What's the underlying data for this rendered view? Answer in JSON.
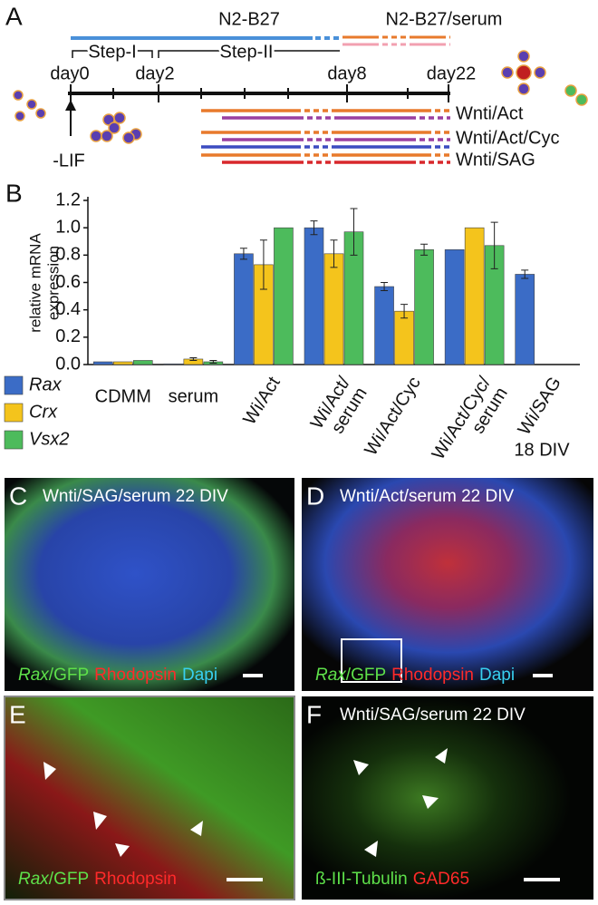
{
  "panel_a": {
    "label": "A",
    "media": [
      "N2-B27",
      "N2-B27/serum"
    ],
    "steps": [
      "Step-I",
      "Step-II"
    ],
    "days": [
      "day0",
      "day2",
      "day8",
      "day22"
    ],
    "treatment": "-LIF",
    "conditions": [
      "Wnti/Act",
      "Wnti/Act/Cyc",
      "Wnti/SAG"
    ]
  },
  "chart_data": {
    "type": "bar",
    "panel_label": "B",
    "ylabel": [
      "relative mRNA",
      "expression"
    ],
    "categories": [
      "CDMM",
      "serum",
      "Wi/Act",
      "Wi/Act/\nserum",
      "Wi/Act/Cyc",
      "Wi/Act/Cyc/\nserum",
      "Wi/SAG"
    ],
    "series": [
      {
        "name": "Rax",
        "color": "#3b6cc6",
        "values": [
          0.02,
          0.005,
          0.81,
          1.0,
          0.57,
          0.84,
          0.66
        ],
        "errors": [
          0,
          0,
          0.04,
          0.05,
          0.03,
          0,
          0.03
        ]
      },
      {
        "name": "Crx",
        "color": "#f4c41c",
        "values": [
          0.02,
          0.04,
          0.73,
          0.81,
          0.39,
          1.0,
          0
        ],
        "errors": [
          0,
          0.01,
          0.18,
          0.1,
          0.05,
          0,
          0
        ]
      },
      {
        "name": "Vsx2",
        "color": "#4dbb5c",
        "values": [
          0.03,
          0.02,
          1.0,
          0.97,
          0.84,
          0.87,
          0
        ],
        "errors": [
          0,
          0.01,
          0,
          0.17,
          0.04,
          0.17,
          0
        ]
      }
    ],
    "ylim": [
      0,
      1.2
    ],
    "yticks": [
      {
        "value": 0,
        "label": "0.0"
      },
      0.2,
      0.4,
      0.6,
      0.8,
      {
        "value": 1,
        "label": "1.0"
      },
      1.2
    ],
    "grid": false,
    "annotation": "18 DIV"
  },
  "images": [
    {
      "label": "C",
      "title": "Wnti/SAG/serum 22 DIV",
      "caption": [
        "Rax",
        "/GFP",
        "Rhodopsin",
        "Dapi"
      ]
    },
    {
      "label": "D",
      "title": "Wnti/Act/serum 22 DIV",
      "caption": [
        "Rax",
        "/GFP",
        "Rhodopsin",
        "Dapi"
      ]
    },
    {
      "label": "E",
      "caption": [
        "Rax",
        "/GFP",
        "Rhodopsin"
      ]
    },
    {
      "label": "F",
      "title": "Wnti/SAG/serum 22 DIV",
      "caption": [
        "ß-III-Tubulin",
        "GAD65"
      ]
    }
  ]
}
